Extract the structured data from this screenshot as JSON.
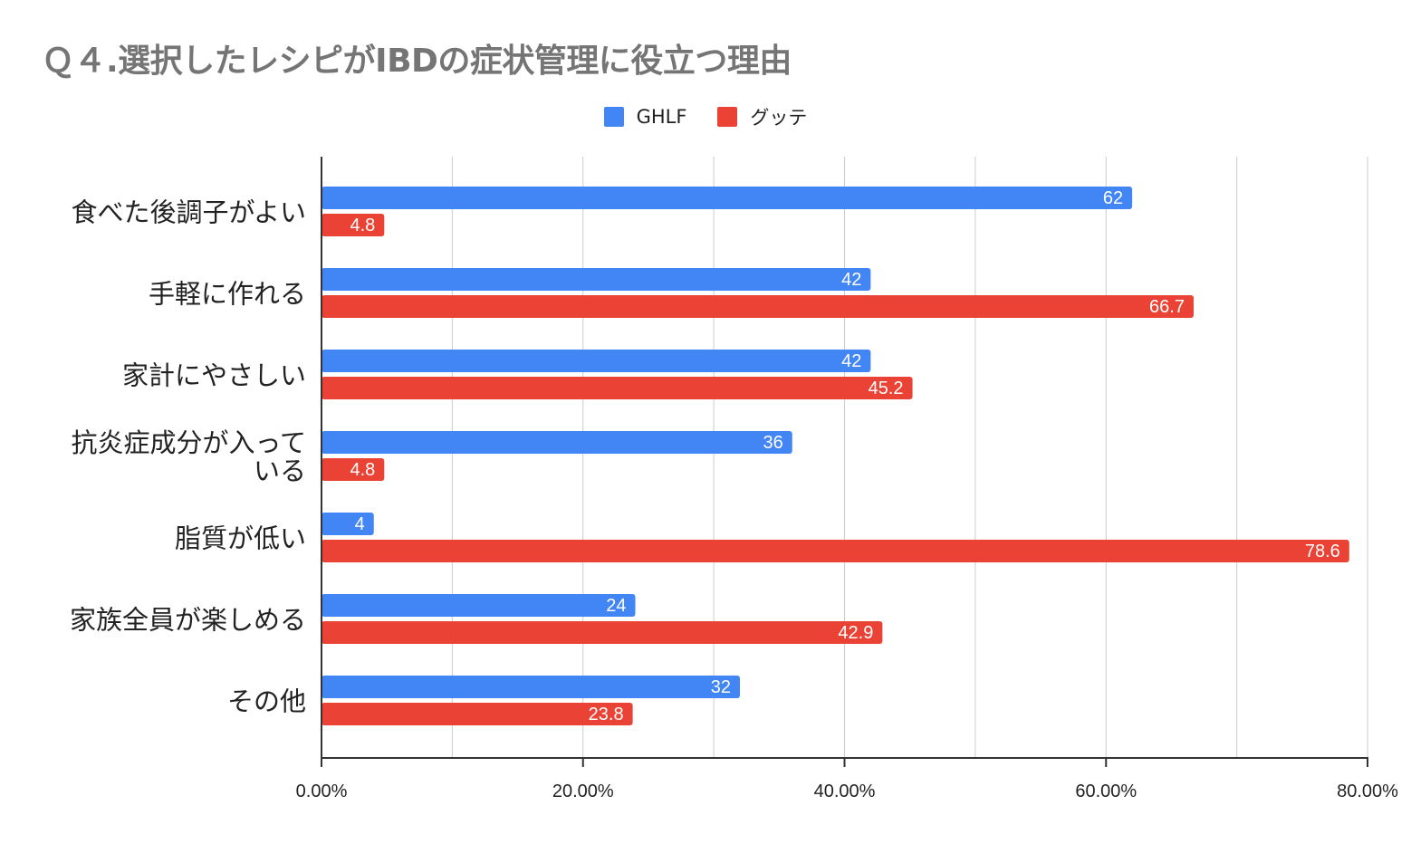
{
  "chart_data": {
    "type": "bar",
    "orientation": "horizontal",
    "title": "Ｑ４.選択したレシピがIBDの症状管理に役立つ理由",
    "categories": [
      "食べた後調子がよい",
      "手軽に作れる",
      "家計にやさしい",
      "抗炎症成分が入っている",
      "脂質が低い",
      "家族全員が楽しめる",
      "その他"
    ],
    "category_lines": [
      [
        "食べた後調子がよい"
      ],
      [
        "手軽に作れる"
      ],
      [
        "家計にやさしい"
      ],
      [
        "抗炎症成分が入って",
        "いる"
      ],
      [
        "脂質が低い"
      ],
      [
        "家族全員が楽しめる"
      ],
      [
        "その他"
      ]
    ],
    "series": [
      {
        "name": "GHLF",
        "color": "#4285f4",
        "values": [
          62,
          42,
          42,
          36,
          4,
          24,
          32
        ],
        "labels": [
          "62",
          "42",
          "42",
          "36",
          "4",
          "24",
          "32"
        ]
      },
      {
        "name": "グッテ",
        "color": "#ea4335",
        "values": [
          4.8,
          66.7,
          45.2,
          4.8,
          78.6,
          42.9,
          23.8
        ],
        "labels": [
          "4.8",
          "66.7",
          "45.2",
          "4.8",
          "78.6",
          "42.9",
          "23.8"
        ]
      }
    ],
    "xlim": [
      0,
      80
    ],
    "xticks": [
      0,
      20,
      40,
      60,
      80
    ],
    "xtick_labels": [
      "0.00%",
      "20.00%",
      "40.00%",
      "60.00%",
      "80.00%"
    ],
    "grid": true,
    "legend": "top-center"
  }
}
